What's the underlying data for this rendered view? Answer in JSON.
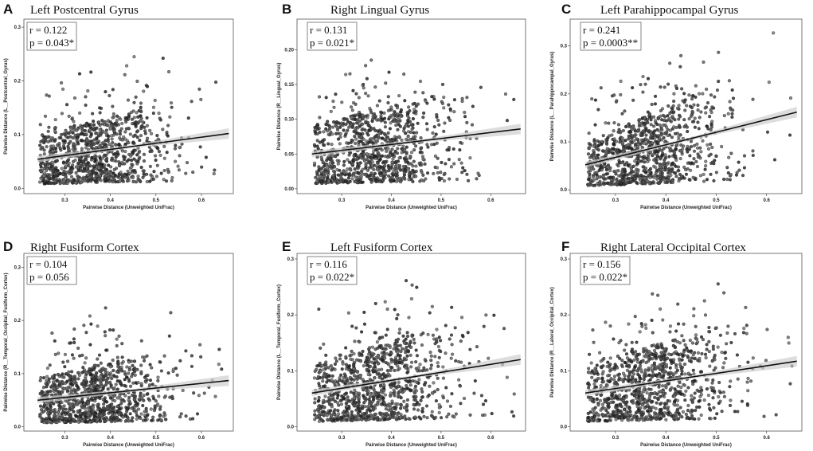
{
  "chart_data": [
    {
      "type": "scatter",
      "letter": "A",
      "title": "Left Postcentral Gyrus",
      "stat_r": "r = 0.122",
      "stat_p": "p = 0.043*",
      "xlabel": "Pairwise Distance (Unweighted UniFrac)",
      "ylabel": "Pairwise Distance (L__Postcentral_Gyrus)",
      "xlim": [
        0.21,
        0.67
      ],
      "ylim": [
        -0.01,
        0.315
      ],
      "xticks": [
        0.3,
        0.4,
        0.5,
        0.6
      ],
      "xtick_labels": [
        "0.3",
        "0.4",
        "0.5",
        "0.6"
      ],
      "yticks": [
        0.0,
        0.1,
        0.2,
        0.3
      ],
      "ytick_labels": [
        "0.0",
        "0.1",
        "0.2",
        "0.3"
      ],
      "fit": {
        "x": [
          0.24,
          0.66
        ],
        "y": [
          0.054,
          0.102
        ]
      },
      "seed": 11,
      "n_points": 1000
    },
    {
      "type": "scatter",
      "letter": "B",
      "title": "Right Lingual Gyrus",
      "stat_r": "r = 0.131",
      "stat_p": "p = 0.021*",
      "xlabel": "Pairwise Distance (Unweighted UniFrac)",
      "ylabel": "Pairwise Distance (R__Lingual_Gyrus)",
      "xlim": [
        0.21,
        0.67
      ],
      "ylim": [
        -0.007,
        0.244
      ],
      "xticks": [
        0.3,
        0.4,
        0.5,
        0.6
      ],
      "xtick_labels": [
        "0.3",
        "0.4",
        "0.5",
        "0.6"
      ],
      "yticks": [
        0.0,
        0.05,
        0.1,
        0.15,
        0.2
      ],
      "ytick_labels": [
        "0.00",
        "0.05",
        "0.10",
        "0.15",
        "0.20"
      ],
      "fit": {
        "x": [
          0.24,
          0.66
        ],
        "y": [
          0.05,
          0.086
        ]
      },
      "seed": 23,
      "n_points": 1000
    },
    {
      "type": "scatter",
      "letter": "C",
      "title": "Left Parahippocampal Gyrus",
      "stat_r": "r = 0.241",
      "stat_p": "p = 0.0003**",
      "xlabel": "Pairwise Distance (Unweighted UniFrac)",
      "ylabel": "Pairwise Distance (L__Parahippocampal_Gyrus)",
      "xlim": [
        0.21,
        0.67
      ],
      "ylim": [
        -0.008,
        0.356
      ],
      "xticks": [
        0.3,
        0.4,
        0.5,
        0.6
      ],
      "xtick_labels": [
        "0.3",
        "0.4",
        "0.5",
        "0.6"
      ],
      "yticks": [
        0.0,
        0.1,
        0.2,
        0.3
      ],
      "ytick_labels": [
        "0.0",
        "0.1",
        "0.2",
        "0.3"
      ],
      "fit": {
        "x": [
          0.24,
          0.66
        ],
        "y": [
          0.052,
          0.162
        ]
      },
      "seed": 37,
      "n_points": 1000
    },
    {
      "type": "scatter",
      "letter": "D",
      "title": "Right Fusiform Cortex",
      "stat_r": "r = 0.104",
      "stat_p": "p = 0.056",
      "xlabel": "Pairwise Distance (Unweighted UniFrac)",
      "ylabel": "Pairwise Distance (R__Temporal_Occipital_Fusiform_Cortex)",
      "xlim": [
        0.21,
        0.67
      ],
      "ylim": [
        -0.008,
        0.326
      ],
      "xticks": [
        0.3,
        0.4,
        0.5,
        0.6
      ],
      "xtick_labels": [
        "0.3",
        "0.4",
        "0.5",
        "0.6"
      ],
      "yticks": [
        0.0,
        0.1,
        0.2,
        0.3
      ],
      "ytick_labels": [
        "0.0",
        "0.1",
        "0.2",
        "0.3"
      ],
      "fit": {
        "x": [
          0.24,
          0.66
        ],
        "y": [
          0.05,
          0.087
        ]
      },
      "seed": 41,
      "n_points": 1000
    },
    {
      "type": "scatter",
      "letter": "E",
      "title": "Left Fusiform Cortex",
      "stat_r": "r = 0.116",
      "stat_p": "p = 0.022*",
      "xlabel": "Pairwise Distance (Unweighted UniFrac)",
      "ylabel": "Pairwise Distance (L__Temporal_Fusiform_Cortex)",
      "xlim": [
        0.21,
        0.67
      ],
      "ylim": [
        -0.008,
        0.31
      ],
      "xticks": [
        0.3,
        0.4,
        0.5,
        0.6
      ],
      "xtick_labels": [
        "0.3",
        "0.4",
        "0.5",
        "0.6"
      ],
      "yticks": [
        0.0,
        0.1,
        0.2,
        0.3
      ],
      "ytick_labels": [
        "0.0",
        "0.1",
        "0.2",
        "0.3"
      ],
      "fit": {
        "x": [
          0.24,
          0.66
        ],
        "y": [
          0.06,
          0.12
        ]
      },
      "seed": 53,
      "n_points": 1000
    },
    {
      "type": "scatter",
      "letter": "F",
      "title": "Right Lateral Occipital Cortex",
      "stat_r": "r = 0.156",
      "stat_p": "p = 0.022*",
      "xlabel": "Pairwise Distance (Unweighted UniFrac)",
      "ylabel": "Pairwise Distance (R__Lateral_Occipital_Cortex)",
      "xlim": [
        0.21,
        0.67
      ],
      "ylim": [
        -0.008,
        0.31
      ],
      "xticks": [
        0.3,
        0.4,
        0.5,
        0.6
      ],
      "xtick_labels": [
        "0.3",
        "0.4",
        "0.5",
        "0.6"
      ],
      "yticks": [
        0.0,
        0.1,
        0.2,
        0.3
      ],
      "ytick_labels": [
        "0.0",
        "0.1",
        "0.2",
        "0.3"
      ],
      "fit": {
        "x": [
          0.24,
          0.66
        ],
        "y": [
          0.06,
          0.117
        ]
      },
      "seed": 67,
      "n_points": 1000
    }
  ],
  "colors": {
    "point": "#333333",
    "point_edge": "#1a1a1a",
    "fit_line": "#111111",
    "ci_band": "#cfcfcf",
    "frame": "#555555"
  }
}
